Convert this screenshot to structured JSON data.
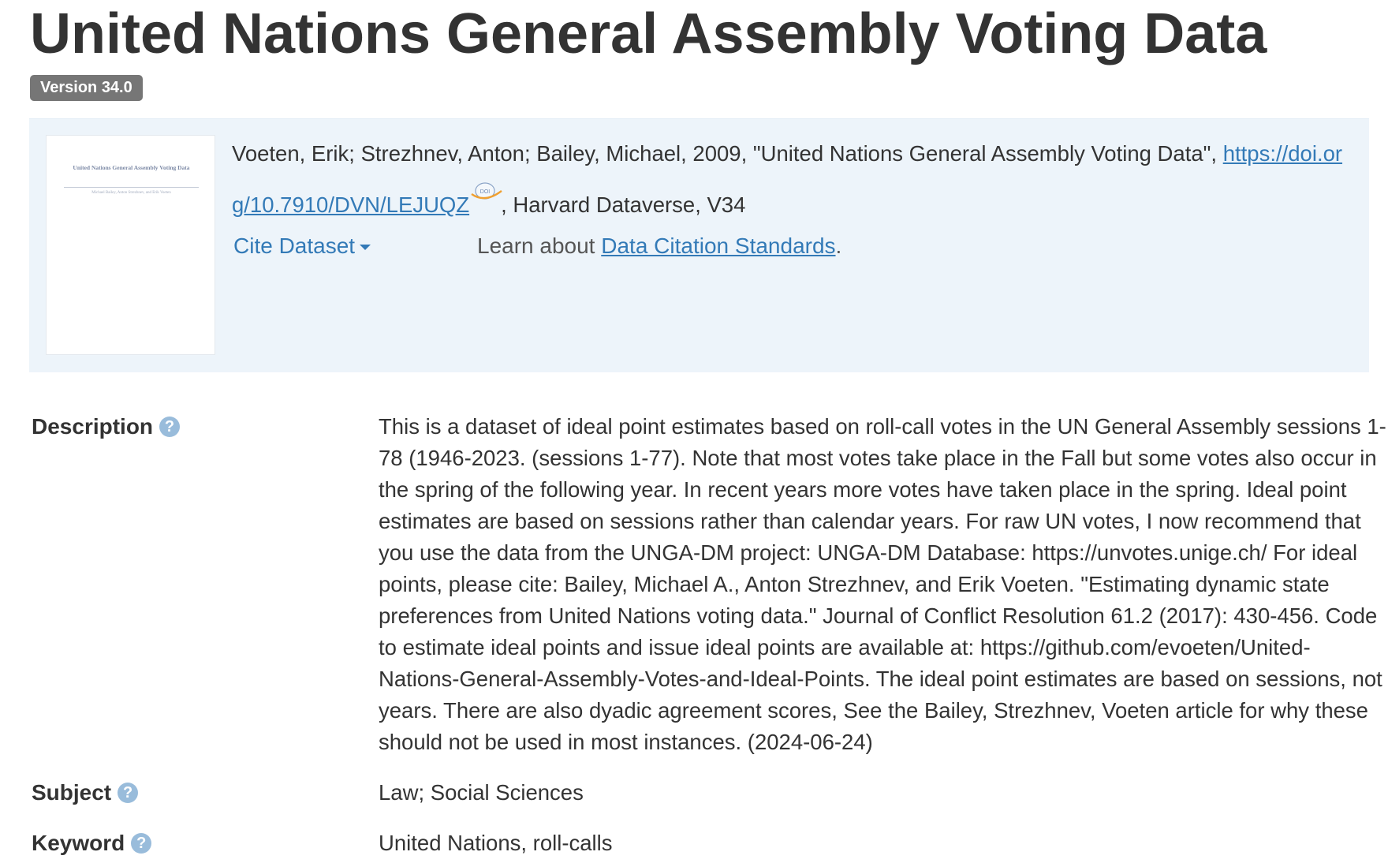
{
  "dataset": {
    "title": "United Nations General Assembly Voting Data",
    "version_badge": "Version 34.0"
  },
  "thumbnail": {
    "title": "United Nations General Assembly Voting Data",
    "authors": "Michael Bailey, Anton Strezhnev, and Erik Voeten"
  },
  "citation": {
    "text_before_link": "Voeten, Erik; Strezhnev, Anton; Bailey, Michael, 2009, \"United Nations General Assembly Voting Data\", ",
    "doi_link": "https://doi.org/10.7910/DVN/LEJUQZ",
    "text_after_link": ", Harvard Dataverse, V34",
    "doi_icon": "doi-globe-icon",
    "cite_dataset_label": "Cite Dataset",
    "learn_about_text": "Learn about ",
    "standards_link": "Data Citation Standards",
    "learn_suffix": "."
  },
  "metadata": {
    "description": {
      "label": "Description",
      "value": "This is a dataset of ideal point estimates based on roll-call votes in the UN General Assembly sessions 1-78 (1946-2023. (sessions 1-77). Note that most votes take place in the Fall but some votes also occur in the spring of the following year. In recent years more votes have taken place in the spring. Ideal point estimates are based on sessions rather than calendar years. For raw UN votes, I now recommend that you use the data from the UNGA-DM project: UNGA-DM Database: https://unvotes.unige.ch/ For ideal points, please cite: Bailey, Michael A., Anton Strezhnev, and Erik Voeten. \"Estimating dynamic state preferences from United Nations voting data.\" Journal of Conflict Resolution 61.2 (2017): 430-456. Code to estimate ideal points and issue ideal points are available at: https://github.com/evoeten/United-Nations-General-Assembly-Votes-and-Ideal-Points. The ideal point estimates are based on sessions, not years. There are also dyadic agreement scores, See the Bailey, Strezhnev, Voeten article for why these should not be used in most instances. (2024-06-24)"
    },
    "subject": {
      "label": "Subject",
      "value": "Law; Social Sciences"
    },
    "keyword": {
      "label": "Keyword",
      "value": "United Nations, roll-calls"
    },
    "help_icon_glyph": "?",
    "help_icon": "question-circle-icon"
  },
  "colors": {
    "link": "#337ab7",
    "citation_background": "#edf4fa",
    "badge_background": "#767676",
    "help_icon": "#99bcdb",
    "text": "#333333"
  }
}
